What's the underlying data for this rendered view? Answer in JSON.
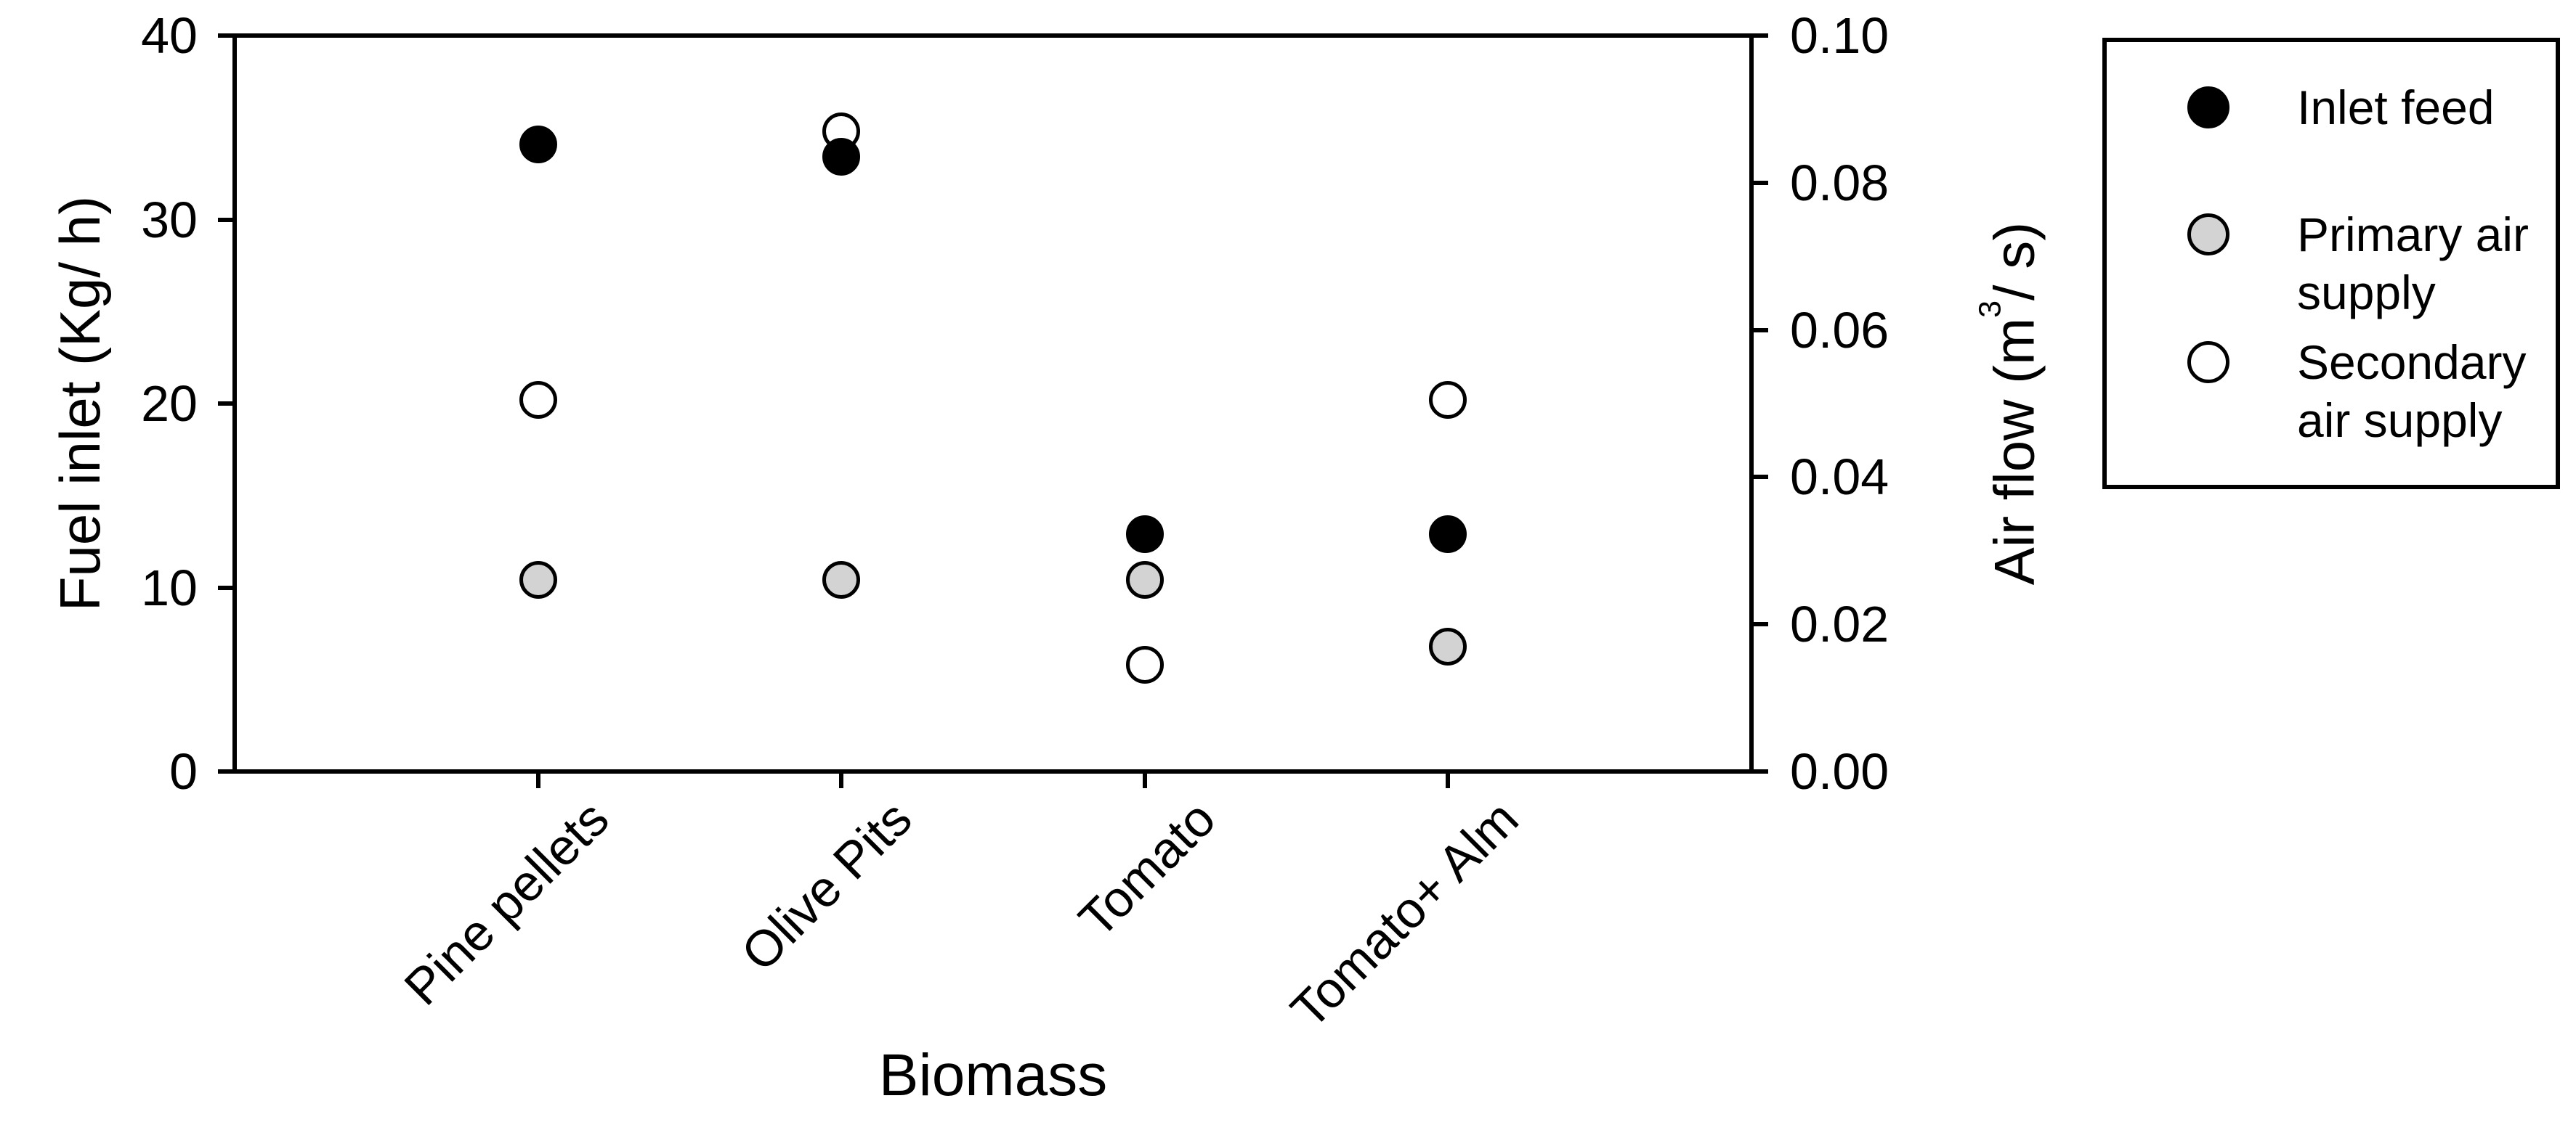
{
  "figure": {
    "background": "#ffffff",
    "axis_color": "#000000",
    "marker_gray": "#d3d3d3"
  },
  "chart_data": {
    "type": "scatter",
    "title": "",
    "categories": [
      "Pine pellets",
      "Olive Pits",
      "Tomato",
      "Tomato+ Alm"
    ],
    "xlabel": "Biomass",
    "grid": false,
    "legend_position": "outside-right",
    "y_left": {
      "label": "Fuel inlet (Kg/ h)",
      "min": 0,
      "max": 40,
      "ticks": [
        0,
        10,
        20,
        30,
        40
      ],
      "tick_labels": [
        "0",
        "10",
        "20",
        "30",
        "40"
      ]
    },
    "y_right": {
      "label_pre": "Air flow (m",
      "label_sup": "3",
      "label_post": "/ s)",
      "min": 0,
      "max": 0.1,
      "ticks": [
        0,
        0.02,
        0.04,
        0.06,
        0.08,
        0.1
      ],
      "tick_labels": [
        "0.00",
        "0.02",
        "0.04",
        "0.06",
        "0.08",
        "0.10"
      ]
    },
    "series": [
      {
        "key": "inlet-feed",
        "name": "Inlet feed",
        "legend_lines": [
          "Inlet feed"
        ],
        "axis": "left",
        "marker": "circle",
        "fill": "#000000",
        "stroke": "#000000",
        "values": [
          34.1,
          33.4,
          12.9,
          12.9
        ]
      },
      {
        "key": "primary-air-supply",
        "name": "Primary air supply",
        "legend_lines": [
          "Primary air",
          "supply"
        ],
        "axis": "right",
        "marker": "circle",
        "fill": "#d3d3d3",
        "stroke": "#000000",
        "values": [
          0.026,
          0.026,
          0.026,
          0.017
        ]
      },
      {
        "key": "secondary-air-supply",
        "name": "Secondary air supply",
        "legend_lines": [
          "Secondary",
          "air supply"
        ],
        "axis": "right",
        "marker": "circle",
        "fill": "#ffffff",
        "stroke": "#000000",
        "values": [
          0.0505,
          0.087,
          0.0145,
          0.0505
        ]
      }
    ]
  }
}
